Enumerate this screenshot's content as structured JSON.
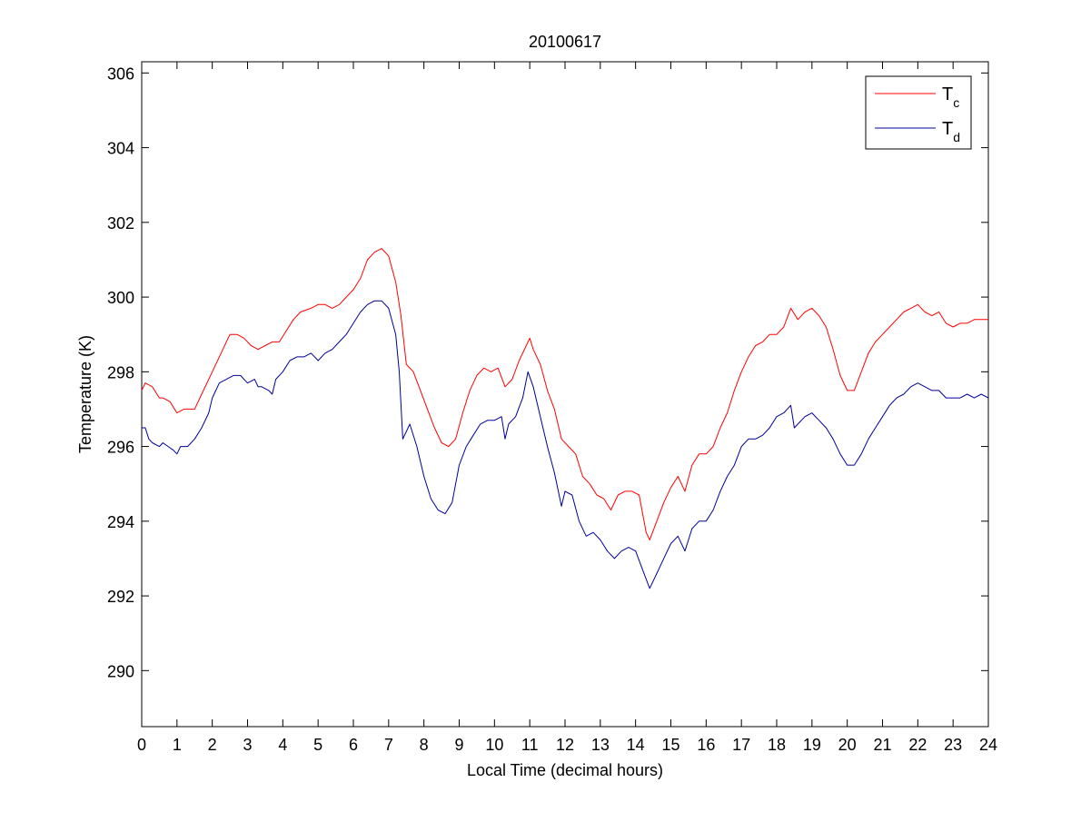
{
  "chart_data": {
    "type": "line",
    "title": "20100617",
    "xlabel": "Local Time (decimal hours)",
    "ylabel": "Temperature (K)",
    "xlim": [
      0,
      24
    ],
    "ylim": [
      288.5,
      306.3
    ],
    "x_ticks": [
      0,
      1,
      2,
      3,
      4,
      5,
      6,
      7,
      8,
      9,
      10,
      11,
      12,
      13,
      14,
      15,
      16,
      17,
      18,
      19,
      20,
      21,
      22,
      23,
      24
    ],
    "y_ticks": [
      290,
      292,
      294,
      296,
      298,
      300,
      302,
      304,
      306
    ],
    "grid": false,
    "legend_position": "top-right",
    "series": [
      {
        "name": "T_c",
        "label_main": "T",
        "label_sub": "c",
        "color": "#ff0000",
        "x": [
          0,
          0.1,
          0.3,
          0.5,
          0.6,
          0.8,
          1.0,
          1.2,
          1.5,
          1.7,
          2.0,
          2.3,
          2.5,
          2.7,
          2.9,
          3.1,
          3.3,
          3.5,
          3.7,
          3.9,
          4.1,
          4.3,
          4.5,
          4.8,
          5.0,
          5.2,
          5.4,
          5.6,
          5.8,
          6.0,
          6.2,
          6.4,
          6.6,
          6.8,
          7.0,
          7.2,
          7.35,
          7.5,
          7.7,
          7.9,
          8.1,
          8.3,
          8.5,
          8.7,
          8.9,
          9.1,
          9.3,
          9.5,
          9.7,
          9.9,
          10.1,
          10.3,
          10.5,
          10.7,
          10.9,
          11.0,
          11.1,
          11.3,
          11.5,
          11.7,
          11.9,
          12.1,
          12.3,
          12.5,
          12.7,
          12.9,
          13.1,
          13.3,
          13.5,
          13.7,
          13.9,
          14.1,
          14.3,
          14.4,
          14.6,
          14.8,
          15.0,
          15.2,
          15.4,
          15.6,
          15.8,
          16.0,
          16.2,
          16.4,
          16.6,
          16.8,
          17.0,
          17.2,
          17.4,
          17.6,
          17.8,
          18.0,
          18.2,
          18.4,
          18.6,
          18.8,
          19.0,
          19.2,
          19.4,
          19.6,
          19.8,
          20.0,
          20.2,
          20.4,
          20.6,
          20.8,
          21.0,
          21.2,
          21.4,
          21.6,
          21.8,
          22.0,
          22.2,
          22.4,
          22.6,
          22.8,
          23.0,
          23.2,
          23.4,
          23.6,
          23.8,
          24.0
        ],
        "y": [
          297.5,
          297.7,
          297.6,
          297.3,
          297.3,
          297.2,
          296.9,
          297.0,
          297.0,
          297.4,
          298.0,
          298.6,
          299.0,
          299.0,
          298.9,
          298.7,
          298.6,
          298.7,
          298.8,
          298.8,
          299.1,
          299.4,
          299.6,
          299.7,
          299.8,
          299.8,
          299.7,
          299.8,
          300.0,
          300.2,
          300.5,
          301.0,
          301.2,
          301.3,
          301.1,
          300.4,
          299.5,
          298.2,
          298.0,
          297.5,
          297.0,
          296.5,
          296.1,
          296.0,
          296.2,
          296.9,
          297.5,
          297.9,
          298.1,
          298.0,
          298.1,
          297.6,
          297.8,
          298.3,
          298.7,
          298.9,
          298.6,
          298.2,
          297.5,
          297.0,
          296.2,
          296.0,
          295.8,
          295.2,
          295.0,
          294.7,
          294.6,
          294.3,
          294.7,
          294.8,
          294.8,
          294.7,
          293.7,
          293.5,
          294.0,
          294.5,
          294.9,
          295.2,
          294.8,
          295.5,
          295.8,
          295.8,
          296.0,
          296.5,
          296.9,
          297.5,
          298.0,
          298.4,
          298.7,
          298.8,
          299.0,
          299.0,
          299.2,
          299.7,
          299.4,
          299.6,
          299.7,
          299.5,
          299.2,
          298.6,
          297.9,
          297.5,
          297.5,
          298.0,
          298.5,
          298.8,
          299.0,
          299.2,
          299.4,
          299.6,
          299.7,
          299.8,
          299.6,
          299.5,
          299.6,
          299.3,
          299.2,
          299.3,
          299.3,
          299.4,
          299.4,
          299.4
        ]
      },
      {
        "name": "T_d",
        "label_main": "T",
        "label_sub": "d",
        "color": "#000099",
        "x": [
          0,
          0.1,
          0.2,
          0.3,
          0.5,
          0.6,
          0.75,
          0.9,
          1.0,
          1.1,
          1.3,
          1.5,
          1.7,
          1.9,
          2.0,
          2.2,
          2.4,
          2.6,
          2.8,
          3.0,
          3.2,
          3.3,
          3.4,
          3.6,
          3.7,
          3.8,
          4.0,
          4.2,
          4.4,
          4.6,
          4.8,
          5.0,
          5.2,
          5.4,
          5.6,
          5.8,
          6.0,
          6.2,
          6.4,
          6.6,
          6.8,
          7.0,
          7.2,
          7.3,
          7.4,
          7.5,
          7.6,
          7.8,
          8.0,
          8.2,
          8.4,
          8.6,
          8.8,
          9.0,
          9.2,
          9.4,
          9.6,
          9.8,
          10.0,
          10.2,
          10.3,
          10.4,
          10.6,
          10.8,
          10.95,
          11.1,
          11.3,
          11.5,
          11.7,
          11.9,
          12.0,
          12.2,
          12.4,
          12.6,
          12.8,
          13.0,
          13.2,
          13.4,
          13.6,
          13.8,
          14.0,
          14.2,
          14.4,
          14.6,
          14.8,
          15.0,
          15.2,
          15.4,
          15.6,
          15.8,
          16.0,
          16.2,
          16.4,
          16.6,
          16.8,
          17.0,
          17.2,
          17.4,
          17.6,
          17.8,
          18.0,
          18.2,
          18.4,
          18.5,
          18.6,
          18.8,
          19.0,
          19.2,
          19.4,
          19.6,
          19.8,
          20.0,
          20.2,
          20.4,
          20.6,
          20.8,
          21.0,
          21.2,
          21.4,
          21.6,
          21.8,
          22.0,
          22.2,
          22.4,
          22.6,
          22.8,
          23.0,
          23.2,
          23.4,
          23.6,
          23.8,
          24.0
        ],
        "y": [
          296.5,
          296.5,
          296.2,
          296.1,
          296.0,
          296.1,
          296.0,
          295.9,
          295.8,
          296.0,
          296.0,
          296.2,
          296.5,
          296.9,
          297.3,
          297.7,
          297.8,
          297.9,
          297.9,
          297.7,
          297.8,
          297.6,
          297.6,
          297.5,
          297.4,
          297.8,
          298.0,
          298.3,
          298.4,
          298.4,
          298.5,
          298.3,
          298.5,
          298.6,
          298.8,
          299.0,
          299.3,
          299.6,
          299.8,
          299.9,
          299.9,
          299.7,
          299.0,
          298.0,
          296.2,
          296.4,
          296.6,
          296.0,
          295.2,
          294.6,
          294.3,
          294.2,
          294.5,
          295.5,
          296.0,
          296.3,
          296.6,
          296.7,
          296.7,
          296.8,
          296.2,
          296.6,
          296.8,
          297.3,
          298.0,
          297.6,
          296.8,
          296.0,
          295.3,
          294.4,
          294.8,
          294.7,
          294.0,
          293.6,
          293.7,
          293.5,
          293.2,
          293.0,
          293.2,
          293.3,
          293.2,
          292.7,
          292.2,
          292.6,
          293.0,
          293.4,
          293.6,
          293.2,
          293.8,
          294.0,
          294.0,
          294.3,
          294.8,
          295.2,
          295.5,
          296.0,
          296.2,
          296.2,
          296.3,
          296.5,
          296.8,
          296.9,
          297.1,
          296.5,
          296.6,
          296.8,
          296.9,
          296.7,
          296.5,
          296.2,
          295.8,
          295.5,
          295.5,
          295.8,
          296.2,
          296.5,
          296.8,
          297.1,
          297.3,
          297.4,
          297.6,
          297.7,
          297.6,
          297.5,
          297.5,
          297.3,
          297.3,
          297.3,
          297.4,
          297.3,
          297.4,
          297.3
        ]
      }
    ]
  }
}
